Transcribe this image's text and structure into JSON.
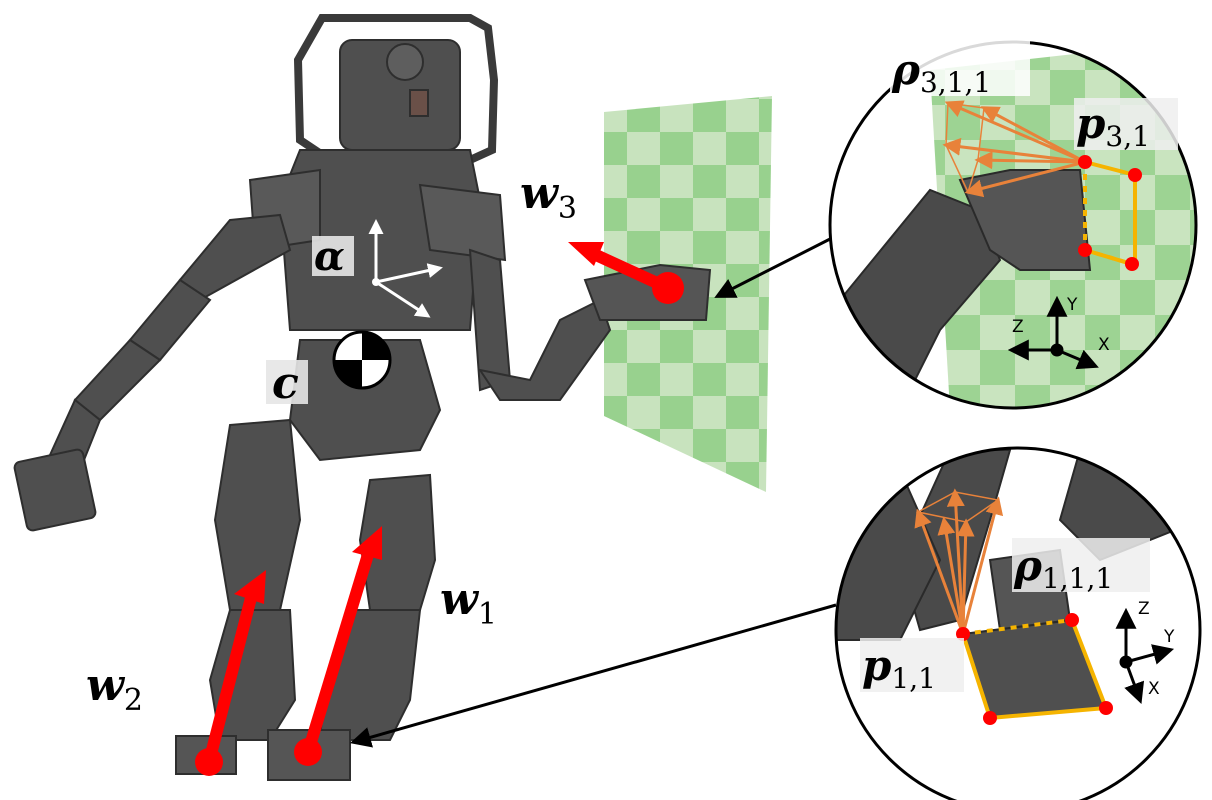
{
  "labels": {
    "alpha": "α",
    "c": "c",
    "w1": {
      "base": "w",
      "sub": "1"
    },
    "w2": {
      "base": "w",
      "sub": "2"
    },
    "w3": {
      "base": "w",
      "sub": "3"
    },
    "rho311": {
      "base": "ρ",
      "sub": "3,1,1"
    },
    "p31": {
      "base": "p",
      "sub": "3,1"
    },
    "rho111": {
      "base": "ρ",
      "sub": "1,1,1"
    },
    "p11": {
      "base": "p",
      "sub": "1,1"
    }
  },
  "hand_inset_axes": {
    "x": "X",
    "y": "Y",
    "z": "Z"
  },
  "foot_inset_axes": {
    "x": "X",
    "y": "Y",
    "z": "Z"
  },
  "colors": {
    "robot": "#4f4f4f",
    "robot_dark": "#3a3a3a",
    "force": "#ff0000",
    "cone": "#e8823a",
    "contact_edge": "#f5b400",
    "wall_green": "#93cf88",
    "wall_light": "#c5e2bb",
    "label_bg": "#e6e6e6"
  }
}
